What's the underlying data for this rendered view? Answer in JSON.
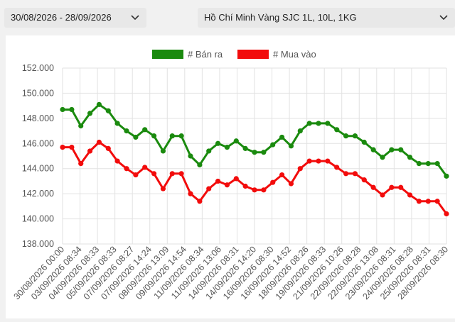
{
  "filters": {
    "date_range": "30/08/2026 - 28/09/2026",
    "product": "Hồ Chí Minh Vàng SJC 1L, 10L, 1KG"
  },
  "colors": {
    "sell": "#1a8a0e",
    "buy": "#f20c0c",
    "grid": "#e2e2e2",
    "axis_text": "#555555"
  },
  "chart_data": {
    "type": "line",
    "title": "",
    "xlabel": "",
    "ylabel": "",
    "ylim": [
      138000,
      152000
    ],
    "y_ticks": [
      "152.000",
      "150.000",
      "148.000",
      "146.000",
      "144.000",
      "142.000",
      "140.000",
      "138.000"
    ],
    "x_tick_labels": [
      "30/08/2026 00:00",
      "03/09/2026 08:34",
      "04/09/2026 08:33",
      "05/09/2026 08:33",
      "07/09/2026 08:27",
      "07/09/2026 14:24",
      "08/09/2026 13:09",
      "09/09/2026 14:54",
      "11/09/2026 08:34",
      "11/09/2026 13:06",
      "14/09/2026 08:31",
      "14/09/2026 14:20",
      "16/09/2026 08:30",
      "16/09/2026 14:52",
      "18/09/2026 08:26",
      "19/09/2026 08:33",
      "21/09/2026 10:26",
      "22/09/2026 08:28",
      "22/09/2026 13:08",
      "23/09/2026 08:31",
      "24/09/2026 08:28",
      "25/09/2026 08:31",
      "28/09/2026 08:30"
    ],
    "legend": {
      "position": "top"
    },
    "series": [
      {
        "name": "# Bán ra",
        "color": "#1a8a0e",
        "values": [
          148700,
          148700,
          147400,
          148400,
          149100,
          148600,
          147600,
          147000,
          146500,
          147100,
          146600,
          145400,
          146600,
          146600,
          145000,
          144300,
          145400,
          146000,
          145700,
          146200,
          145600,
          145300,
          145300,
          145900,
          146500,
          145800,
          147000,
          147600,
          147600,
          147600,
          147100,
          146600,
          146600,
          146100,
          145500,
          144900,
          145500,
          145500,
          144900,
          144400,
          144400,
          144400,
          143400
        ]
      },
      {
        "name": "# Mua vào",
        "color": "#f20c0c",
        "values": [
          145700,
          145700,
          144400,
          145400,
          146100,
          145600,
          144600,
          144000,
          143500,
          144100,
          143600,
          142400,
          143600,
          143600,
          142000,
          141400,
          142400,
          143000,
          142700,
          143200,
          142600,
          142300,
          142300,
          142900,
          143500,
          142800,
          144000,
          144600,
          144600,
          144600,
          144100,
          143600,
          143600,
          143100,
          142500,
          141900,
          142500,
          142500,
          141900,
          141400,
          141400,
          141400,
          140400
        ]
      }
    ]
  }
}
